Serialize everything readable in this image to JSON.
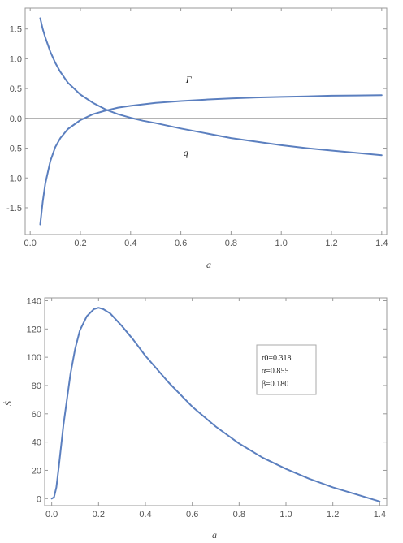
{
  "chart_data": [
    {
      "type": "line",
      "xlabel": "a",
      "ylabel": "",
      "xlim": [
        -0.02,
        1.42
      ],
      "ylim": [
        -1.95,
        1.85
      ],
      "xticks": [
        "0.0",
        "0.2",
        "0.4",
        "0.6",
        "0.8",
        "1.0",
        "1.2",
        "1.4"
      ],
      "yticks": [
        "-1.5",
        "-1.0",
        "-0.5",
        "0.0",
        "0.5",
        "1.0",
        "1.5"
      ],
      "grid": false,
      "reference_line_y": 0,
      "line_color": "#5b7fbf",
      "series": [
        {
          "name": "Γ",
          "x": [
            0.04,
            0.05,
            0.06,
            0.08,
            0.1,
            0.12,
            0.15,
            0.2,
            0.25,
            0.3,
            0.35,
            0.4,
            0.5,
            0.6,
            0.7,
            0.8,
            0.9,
            1.0,
            1.1,
            1.2,
            1.3,
            1.4
          ],
          "y": [
            -1.78,
            -1.4,
            -1.1,
            -0.72,
            -0.48,
            -0.33,
            -0.18,
            -0.03,
            0.07,
            0.13,
            0.18,
            0.21,
            0.26,
            0.29,
            0.315,
            0.335,
            0.35,
            0.36,
            0.37,
            0.38,
            0.385,
            0.39
          ]
        },
        {
          "name": "q",
          "x": [
            0.04,
            0.05,
            0.06,
            0.08,
            0.1,
            0.12,
            0.15,
            0.2,
            0.25,
            0.3,
            0.35,
            0.4,
            0.45,
            0.5,
            0.6,
            0.7,
            0.8,
            0.9,
            1.0,
            1.1,
            1.2,
            1.3,
            1.4
          ],
          "y": [
            1.68,
            1.5,
            1.36,
            1.12,
            0.93,
            0.78,
            0.6,
            0.4,
            0.26,
            0.15,
            0.07,
            0.01,
            -0.04,
            -0.08,
            -0.17,
            -0.25,
            -0.33,
            -0.39,
            -0.45,
            -0.5,
            -0.54,
            -0.58,
            -0.62
          ]
        }
      ],
      "annotations": [
        {
          "text": "Γ",
          "x": 0.62,
          "y": 0.6
        },
        {
          "text": "q",
          "x": 0.61,
          "y": -0.63
        }
      ]
    },
    {
      "type": "line",
      "xlabel": "a",
      "ylabel": "Ṡ",
      "xlim": [
        -0.03,
        1.43
      ],
      "ylim": [
        -5,
        142
      ],
      "xticks": [
        "0.0",
        "0.2",
        "0.4",
        "0.6",
        "0.8",
        "1.0",
        "1.2",
        "1.4"
      ],
      "yticks": [
        "0",
        "20",
        "40",
        "60",
        "80",
        "100",
        "120",
        "140"
      ],
      "grid": false,
      "line_color": "#5b7fbf",
      "series": [
        {
          "x": [
            0.0,
            0.01,
            0.02,
            0.03,
            0.05,
            0.08,
            0.1,
            0.12,
            0.15,
            0.18,
            0.2,
            0.22,
            0.25,
            0.3,
            0.35,
            0.4,
            0.5,
            0.6,
            0.7,
            0.8,
            0.9,
            1.0,
            1.1,
            1.2,
            1.3,
            1.4
          ],
          "y": [
            0,
            1,
            8,
            22,
            52,
            88,
            106,
            119,
            129,
            134,
            135,
            134,
            131,
            122,
            112,
            101,
            82,
            65,
            51,
            39,
            29,
            21,
            14,
            8,
            3,
            -2
          ]
        }
      ],
      "legend": {
        "placement": "right",
        "lines": [
          "r0=0.318",
          "α=0.855",
          "β=0.180"
        ]
      }
    }
  ]
}
